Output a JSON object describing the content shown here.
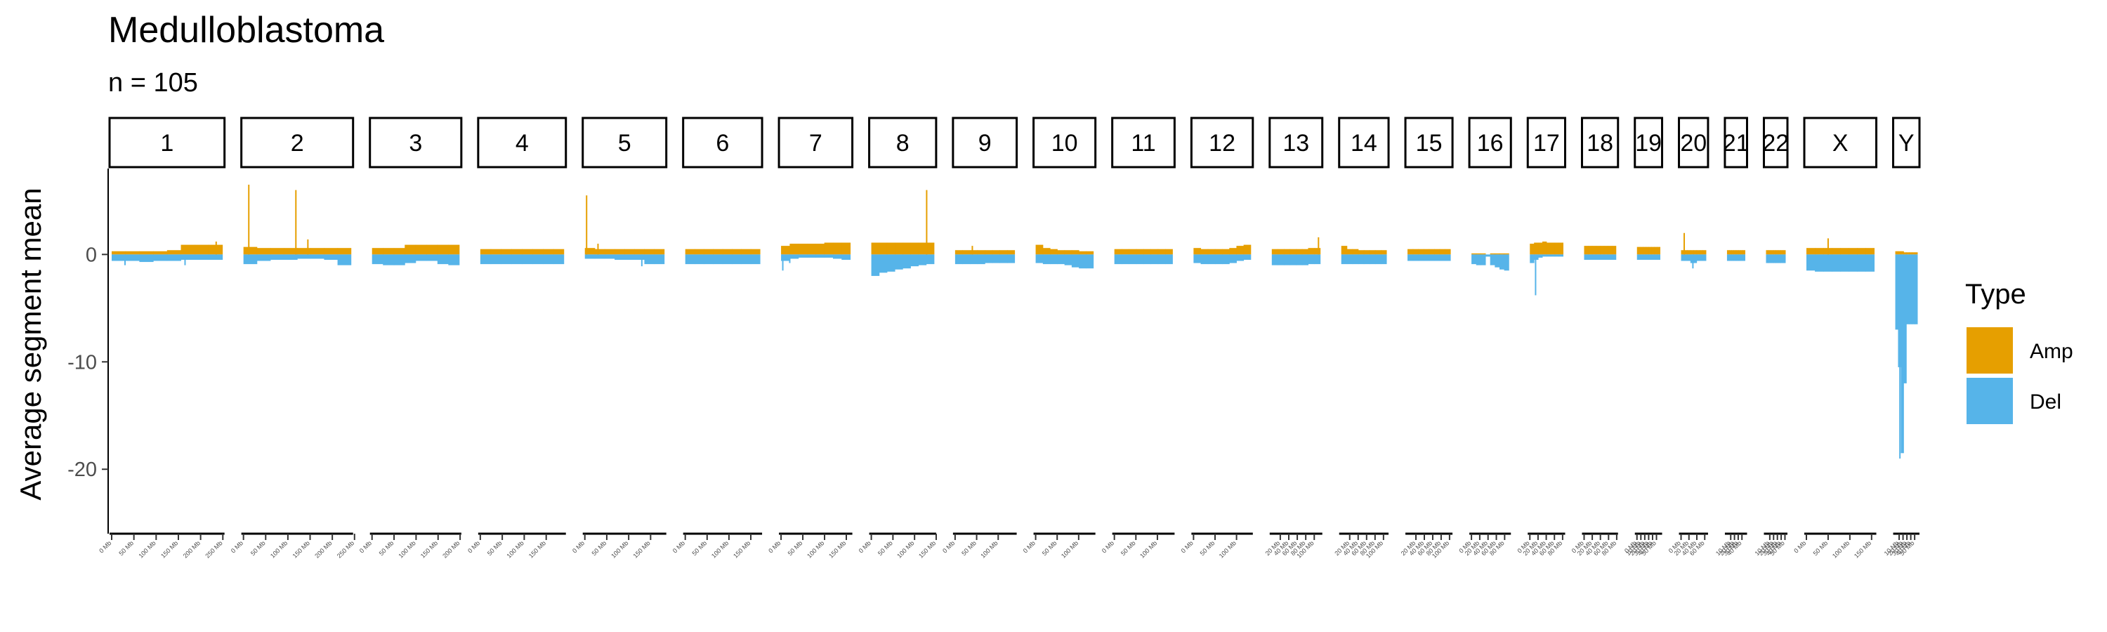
{
  "chart_data": {
    "type": "bar",
    "title": "Medulloblastoma",
    "subtitle": "n = 105",
    "ylabel": "Average segment mean",
    "xlabel": "",
    "ylim": [
      -26,
      8
    ],
    "yticks": [
      0,
      -10,
      -20
    ],
    "ytick_labels": [
      "0",
      "-10",
      "-20"
    ],
    "grid": false,
    "legend": {
      "title": "Type",
      "position": "right",
      "entries": [
        {
          "name": "Amp",
          "color": "#E69F00"
        },
        {
          "name": "Del",
          "color": "#56B4E9"
        }
      ]
    },
    "series": [
      {
        "name": "Amp",
        "color": "#E69F00"
      },
      {
        "name": "Del",
        "color": "#56B4E9"
      }
    ],
    "panels": [
      {
        "label": "1",
        "length_mb": 249,
        "amp": [
          0.3,
          0.3,
          0.3,
          0.3,
          0.4,
          0.9,
          0.9,
          0.9
        ],
        "del": [
          -0.6,
          -0.6,
          -0.7,
          -0.6,
          -0.6,
          -0.5,
          -0.5,
          -0.5
        ],
        "amp_spikes": [
          [
            235,
            1.2
          ]
        ],
        "del_spikes": [
          [
            30,
            -1.0
          ],
          [
            165,
            -1.0
          ]
        ],
        "x_ticks": [
          0,
          50,
          100,
          150,
          200,
          250
        ],
        "x_tick_labels": [
          "0 Mb",
          "50 Mb",
          "100 Mb",
          "150 Mb",
          "200 Mb",
          "250 Mb"
        ]
      },
      {
        "label": "2",
        "length_mb": 242,
        "amp": [
          0.7,
          0.6,
          0.6,
          0.6,
          0.6,
          0.6,
          0.6,
          0.6
        ],
        "del": [
          -0.9,
          -0.6,
          -0.5,
          -0.5,
          -0.4,
          -0.4,
          -0.5,
          -1.0
        ],
        "amp_spikes": [
          [
            12,
            6.5
          ],
          [
            118,
            6.0
          ],
          [
            145,
            1.4
          ]
        ],
        "del_spikes": [],
        "x_ticks": [
          0,
          50,
          100,
          150,
          200,
          250
        ],
        "x_tick_labels": [
          "0 Mb",
          "50 Mb",
          "100 Mb",
          "150 Mb",
          "200 Mb",
          "250 Mb"
        ]
      },
      {
        "label": "3",
        "length_mb": 198,
        "amp": [
          0.6,
          0.6,
          0.6,
          0.9,
          0.9,
          0.9,
          0.9,
          0.9
        ],
        "del": [
          -0.9,
          -1.0,
          -1.0,
          -0.8,
          -0.6,
          -0.6,
          -0.9,
          -1.0
        ],
        "amp_spikes": [],
        "del_spikes": [],
        "x_ticks": [
          0,
          50,
          100,
          150,
          200
        ],
        "x_tick_labels": [
          "0 Mb",
          "50 Mb",
          "100 Mb",
          "150 Mb",
          "200 Mb"
        ]
      },
      {
        "label": "4",
        "length_mb": 190,
        "amp": [
          0.5,
          0.5,
          0.5,
          0.5,
          0.5,
          0.5,
          0.5,
          0.5
        ],
        "del": [
          -0.9,
          -0.9,
          -0.9,
          -0.9,
          -0.9,
          -0.9,
          -0.9,
          -0.9
        ],
        "amp_spikes": [],
        "del_spikes": [],
        "x_ticks": [
          0,
          50,
          100,
          150
        ],
        "x_tick_labels": [
          "0 Mb",
          "50 Mb",
          "100 Mb",
          "150 Mb"
        ]
      },
      {
        "label": "5",
        "length_mb": 181,
        "amp": [
          0.6,
          0.5,
          0.5,
          0.5,
          0.5,
          0.5,
          0.5,
          0.5
        ],
        "del": [
          -0.4,
          -0.4,
          -0.4,
          -0.5,
          -0.5,
          -0.5,
          -0.9,
          -0.9
        ],
        "amp_spikes": [
          [
            4,
            5.5
          ],
          [
            30,
            1.0
          ]
        ],
        "del_spikes": [
          [
            130,
            -1.1
          ]
        ],
        "x_ticks": [
          0,
          50,
          100,
          150
        ],
        "x_tick_labels": [
          "0 Mb",
          "50 Mb",
          "100 Mb",
          "150 Mb"
        ]
      },
      {
        "label": "6",
        "length_mb": 171,
        "amp": [
          0.5,
          0.5,
          0.5,
          0.5,
          0.5,
          0.5,
          0.5,
          0.5
        ],
        "del": [
          -0.9,
          -0.9,
          -0.9,
          -0.9,
          -0.9,
          -0.9,
          -0.9,
          -0.9
        ],
        "amp_spikes": [],
        "del_spikes": [],
        "x_ticks": [
          0,
          50,
          100,
          150
        ],
        "x_tick_labels": [
          "0 Mb",
          "50 Mb",
          "100 Mb",
          "150 Mb"
        ]
      },
      {
        "label": "7",
        "length_mb": 159,
        "amp": [
          0.8,
          1.0,
          1.0,
          1.0,
          1.0,
          1.1,
          1.1,
          1.1
        ],
        "del": [
          -0.6,
          -0.4,
          -0.3,
          -0.3,
          -0.3,
          -0.3,
          -0.4,
          -0.5
        ],
        "amp_spikes": [],
        "del_spikes": [
          [
            4,
            -1.5
          ],
          [
            20,
            -0.8
          ]
        ],
        "x_ticks": [
          0,
          50,
          100,
          150
        ],
        "x_tick_labels": [
          "0 Mb",
          "50 Mb",
          "100 Mb",
          "150 Mb"
        ]
      },
      {
        "label": "8",
        "length_mb": 145,
        "amp": [
          1.1,
          1.1,
          1.1,
          1.1,
          1.1,
          1.1,
          1.1,
          1.1
        ],
        "del": [
          -2.0,
          -1.7,
          -1.6,
          -1.4,
          -1.3,
          -1.1,
          -1.0,
          -0.9
        ],
        "amp_spikes": [
          [
            128,
            6.0
          ]
        ],
        "del_spikes": [],
        "x_ticks": [
          0,
          50,
          100,
          150
        ],
        "x_tick_labels": [
          "0 Mb",
          "50 Mb",
          "100 Mb",
          "150 Mb"
        ]
      },
      {
        "label": "9",
        "length_mb": 138,
        "amp": [
          0.4,
          0.4,
          0.4,
          0.4,
          0.4,
          0.4,
          0.4,
          0.4
        ],
        "del": [
          -0.9,
          -0.9,
          -0.9,
          -0.9,
          -0.8,
          -0.8,
          -0.8,
          -0.8
        ],
        "amp_spikes": [
          [
            40,
            0.8
          ]
        ],
        "del_spikes": [],
        "x_ticks": [
          0,
          50,
          100
        ],
        "x_tick_labels": [
          "0 Mb",
          "50 Mb",
          "100 Mb"
        ]
      },
      {
        "label": "10",
        "length_mb": 134,
        "amp": [
          0.9,
          0.6,
          0.5,
          0.4,
          0.4,
          0.4,
          0.3,
          0.3
        ],
        "del": [
          -0.8,
          -0.9,
          -0.9,
          -0.9,
          -1.0,
          -1.2,
          -1.3,
          -1.3
        ],
        "amp_spikes": [],
        "del_spikes": [],
        "x_ticks": [
          0,
          50,
          100
        ],
        "x_tick_labels": [
          "0 Mb",
          "50 Mb",
          "100 Mb"
        ]
      },
      {
        "label": "11",
        "length_mb": 135,
        "amp": [
          0.5,
          0.5,
          0.5,
          0.5,
          0.5,
          0.5,
          0.5,
          0.5
        ],
        "del": [
          -0.9,
          -0.9,
          -0.9,
          -0.9,
          -0.9,
          -0.9,
          -0.9,
          -0.9
        ],
        "amp_spikes": [],
        "del_spikes": [],
        "x_ticks": [
          0,
          50,
          100
        ],
        "x_tick_labels": [
          "0 Mb",
          "50 Mb",
          "100 Mb"
        ]
      },
      {
        "label": "12",
        "length_mb": 133,
        "amp": [
          0.6,
          0.5,
          0.5,
          0.5,
          0.5,
          0.6,
          0.8,
          0.9
        ],
        "del": [
          -0.8,
          -0.9,
          -0.9,
          -0.9,
          -0.9,
          -0.8,
          -0.6,
          -0.5
        ],
        "amp_spikes": [],
        "del_spikes": [],
        "x_ticks": [
          0,
          50,
          100
        ],
        "x_tick_labels": [
          "0 Mb",
          "50 Mb",
          "100 Mb"
        ]
      },
      {
        "label": "13",
        "length_mb": 114,
        "amp": [
          0.5,
          0.5,
          0.5,
          0.5,
          0.5,
          0.5,
          0.6,
          0.6
        ],
        "del": [
          -1.0,
          -1.0,
          -1.0,
          -1.0,
          -1.0,
          -1.0,
          -0.9,
          -0.9
        ],
        "amp_spikes": [
          [
            110,
            1.6
          ]
        ],
        "del_spikes": [],
        "x_ticks": [
          20,
          40,
          60,
          80,
          100
        ],
        "x_tick_labels": [
          "20 Mb",
          "40 Mb",
          "60 Mb",
          "80 Mb",
          "100 Mb"
        ]
      },
      {
        "label": "14",
        "length_mb": 107,
        "amp": [
          0.8,
          0.5,
          0.5,
          0.4,
          0.4,
          0.4,
          0.4,
          0.4
        ],
        "del": [
          -0.9,
          -0.9,
          -0.9,
          -0.9,
          -0.9,
          -0.9,
          -0.9,
          -0.9
        ],
        "amp_spikes": [],
        "del_spikes": [],
        "x_ticks": [
          20,
          40,
          60,
          80,
          100
        ],
        "x_tick_labels": [
          "20 Mb",
          "40 Mb",
          "60 Mb",
          "80 Mb",
          "100 Mb"
        ]
      },
      {
        "label": "15",
        "length_mb": 102,
        "amp": [
          0.5,
          0.5,
          0.5,
          0.5,
          0.5,
          0.5,
          0.5,
          0.5
        ],
        "del": [
          -0.6,
          -0.6,
          -0.6,
          -0.6,
          -0.6,
          -0.6,
          -0.6,
          -0.6
        ],
        "amp_spikes": [],
        "del_spikes": [],
        "x_ticks": [
          20,
          40,
          60,
          80,
          100
        ],
        "x_tick_labels": [
          "20 Mb",
          "40 Mb",
          "60 Mb",
          "80 Mb",
          "100 Mb"
        ]
      },
      {
        "label": "16",
        "length_mb": 90,
        "amp": [
          0.1,
          0.1,
          0.1,
          0.0,
          0.1,
          0.1,
          0.1,
          0.1
        ],
        "del": [
          -0.9,
          -1.0,
          -1.0,
          -0.2,
          -1.0,
          -1.2,
          -1.4,
          -1.5
        ],
        "amp_spikes": [],
        "del_spikes": [],
        "x_ticks": [
          0,
          20,
          40,
          60,
          80
        ],
        "x_tick_labels": [
          "0 Mb",
          "20 Mb",
          "40 Mb",
          "60 Mb",
          "80 Mb"
        ]
      },
      {
        "label": "17",
        "length_mb": 81,
        "amp": [
          1.0,
          1.1,
          1.1,
          1.2,
          1.1,
          1.1,
          1.1,
          1.1
        ],
        "del": [
          -0.8,
          -0.5,
          -0.3,
          -0.2,
          -0.2,
          -0.2,
          -0.2,
          -0.2
        ],
        "amp_spikes": [],
        "del_spikes": [
          [
            14,
            -3.8
          ]
        ],
        "x_ticks": [
          0,
          20,
          40,
          60,
          80
        ],
        "x_tick_labels": [
          "0 Mb",
          "20 Mb",
          "40 Mb",
          "60 Mb",
          "80 Mb"
        ]
      },
      {
        "label": "18",
        "length_mb": 78,
        "amp": [
          0.8,
          0.8,
          0.8,
          0.8,
          0.8,
          0.8,
          0.8,
          0.8
        ],
        "del": [
          -0.5,
          -0.5,
          -0.5,
          -0.5,
          -0.5,
          -0.5,
          -0.5,
          -0.5
        ],
        "amp_spikes": [],
        "del_spikes": [],
        "x_ticks": [
          0,
          20,
          40,
          60,
          80
        ],
        "x_tick_labels": [
          "0 Mb",
          "20 Mb",
          "40 Mb",
          "60 Mb",
          "80 Mb"
        ]
      },
      {
        "label": "19",
        "length_mb": 59,
        "amp": [
          0.7,
          0.7,
          0.7,
          0.7,
          0.7,
          0.7,
          0.7,
          0.7
        ],
        "del": [
          -0.5,
          -0.5,
          -0.5,
          -0.5,
          -0.5,
          -0.5,
          -0.5,
          -0.5
        ],
        "amp_spikes": [],
        "del_spikes": [],
        "x_ticks": [
          0,
          10,
          20,
          30,
          40,
          50
        ],
        "x_tick_labels": [
          "0 Mb",
          "10 Mb",
          "20 Mb",
          "30 Mb",
          "40 Mb",
          "50 Mb"
        ]
      },
      {
        "label": "20",
        "length_mb": 63,
        "amp": [
          0.4,
          0.4,
          0.4,
          0.4,
          0.4,
          0.4,
          0.4,
          0.4
        ],
        "del": [
          -0.6,
          -0.6,
          -0.6,
          -0.8,
          -0.8,
          -0.6,
          -0.6,
          -0.6
        ],
        "amp_spikes": [
          [
            8,
            2.0
          ]
        ],
        "del_spikes": [
          [
            30,
            -1.3
          ]
        ],
        "x_ticks": [
          0,
          20,
          40,
          60
        ],
        "x_tick_labels": [
          "0 Mb",
          "20 Mb",
          "40 Mb",
          "60 Mb"
        ]
      },
      {
        "label": "21",
        "length_mb": 48,
        "amp": [
          0.4,
          0.4,
          0.4,
          0.4,
          0.4,
          0.4,
          0.4,
          0.4
        ],
        "del": [
          -0.6,
          -0.6,
          -0.6,
          -0.6,
          -0.6,
          -0.6,
          -0.6,
          -0.6
        ],
        "amp_spikes": [],
        "del_spikes": [],
        "x_ticks": [
          10,
          20,
          30,
          40
        ],
        "x_tick_labels": [
          "10 Mb",
          "20 Mb",
          "30 Mb",
          "40 Mb"
        ]
      },
      {
        "label": "22",
        "length_mb": 51,
        "amp": [
          0.4,
          0.4,
          0.4,
          0.4,
          0.4,
          0.4,
          0.4,
          0.4
        ],
        "del": [
          -0.8,
          -0.8,
          -0.8,
          -0.8,
          -0.8,
          -0.8,
          -0.8,
          -0.8
        ],
        "amp_spikes": [],
        "del_spikes": [],
        "x_ticks": [
          10,
          20,
          30,
          40,
          50
        ],
        "x_tick_labels": [
          "10 Mb",
          "20 Mb",
          "30 Mb",
          "40 Mb",
          "50 Mb"
        ]
      },
      {
        "label": "X",
        "length_mb": 156,
        "amp": [
          0.6,
          0.6,
          0.6,
          0.6,
          0.6,
          0.6,
          0.6,
          0.6
        ],
        "del": [
          -1.5,
          -1.6,
          -1.6,
          -1.6,
          -1.6,
          -1.6,
          -1.6,
          -1.6
        ],
        "amp_spikes": [
          [
            50,
            1.5
          ]
        ],
        "del_spikes": [],
        "x_ticks": [
          0,
          50,
          100,
          150
        ],
        "x_tick_labels": [
          "0 Mb",
          "50 Mb",
          "100 Mb",
          "150 Mb"
        ]
      },
      {
        "label": "Y",
        "length_mb": 57,
        "amp": [
          0.3,
          0.3,
          0.3,
          0.2,
          0.2,
          0.2,
          0.2,
          0.2
        ],
        "del": [
          -7.0,
          -10.5,
          -18.5,
          -12.0,
          -6.5,
          -6.5,
          -6.5,
          -6.5
        ],
        "amp_spikes": [],
        "del_spikes": [
          [
            12,
            -19.0
          ],
          [
            18,
            -17.0
          ]
        ],
        "x_ticks": [
          10,
          20,
          30,
          40,
          50
        ],
        "x_tick_labels": [
          "10 Mb",
          "20 Mb",
          "30 Mb",
          "40 Mb",
          "50 Mb"
        ]
      }
    ]
  }
}
